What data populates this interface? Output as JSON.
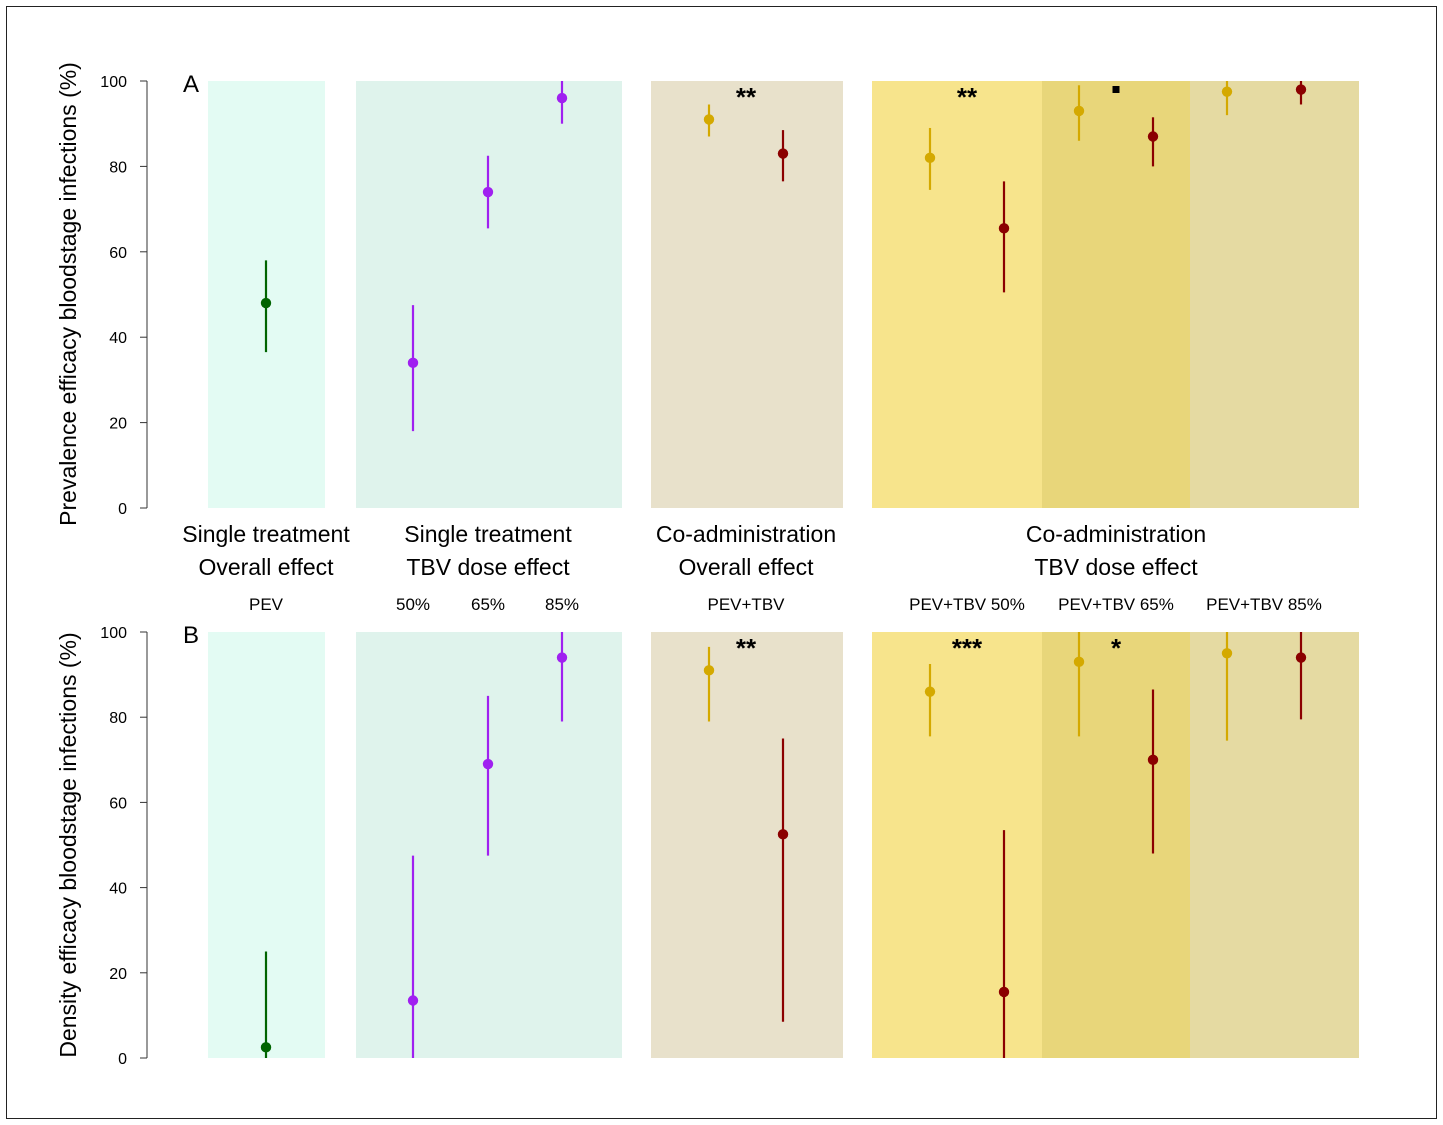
{
  "colors": {
    "pev_single": "#006400",
    "tbv_single": "#a020f0",
    "pev_coadmin": "#d4a900",
    "coadmin": "#8b0000",
    "bg_single_overall": "#e3fbf3",
    "bg_single_dose": "#dff3ec",
    "bg_coadmin_overall": "#e8e1cb",
    "bg_dose_50": "#f7e48c",
    "bg_dose_65": "#e8d67a",
    "bg_dose_85": "#e5daa2"
  },
  "groups": [
    {
      "line1": "Single treatment",
      "line2": "Overall effect"
    },
    {
      "line1": "Single treatment",
      "line2": "TBV dose effect"
    },
    {
      "line1": "Co-administration",
      "line2": "Overall effect"
    },
    {
      "line1": "Co-administration",
      "line2": "TBV dose effect"
    }
  ],
  "sublabels": [
    "PEV",
    "50%",
    "65%",
    "85%",
    "PEV+TBV",
    "PEV+TBV 50%",
    "PEV+TBV 65%",
    "PEV+TBV 85%"
  ],
  "chart_data": [
    {
      "type": "scatter",
      "panel_label": "A",
      "ylabel": "Prevalence efficacy bloodstage infections (%)",
      "ylim": [
        0,
        100
      ],
      "yticks": [
        "0",
        "20",
        "40",
        "60",
        "80",
        "100"
      ],
      "points": [
        {
          "slot": "PEV",
          "role": "pev_single",
          "y": 48,
          "lo": 36.5,
          "hi": 58
        },
        {
          "slot": "50%",
          "role": "tbv_single",
          "y": 34,
          "lo": 18,
          "hi": 47.5
        },
        {
          "slot": "65%",
          "role": "tbv_single",
          "y": 74,
          "lo": 65.5,
          "hi": 82.5
        },
        {
          "slot": "85%",
          "role": "tbv_single",
          "y": 96,
          "lo": 90,
          "hi": 100
        },
        {
          "slot": "PEV+TBV",
          "role": "pev_coadmin",
          "y": 91,
          "lo": 87,
          "hi": 94.5
        },
        {
          "slot": "PEV+TBV",
          "role": "coadmin",
          "y": 83,
          "lo": 76.5,
          "hi": 88.5
        },
        {
          "slot": "PEV+TBV 50%",
          "role": "pev_coadmin",
          "y": 82,
          "lo": 74.5,
          "hi": 89
        },
        {
          "slot": "PEV+TBV 50%",
          "role": "coadmin",
          "y": 65.5,
          "lo": 50.5,
          "hi": 76.5
        },
        {
          "slot": "PEV+TBV 65%",
          "role": "pev_coadmin",
          "y": 93,
          "lo": 86,
          "hi": 99
        },
        {
          "slot": "PEV+TBV 65%",
          "role": "coadmin",
          "y": 87,
          "lo": 80,
          "hi": 91.5
        },
        {
          "slot": "PEV+TBV 85%",
          "role": "pev_coadmin",
          "y": 97.5,
          "lo": 92,
          "hi": 100
        },
        {
          "slot": "PEV+TBV 85%",
          "role": "coadmin",
          "y": 98,
          "lo": 94.5,
          "hi": 100
        }
      ],
      "annotations": [
        {
          "slot": "PEV+TBV",
          "text": "**"
        },
        {
          "slot": "PEV+TBV 50%",
          "text": "**"
        },
        {
          "slot": "PEV+TBV 65%",
          "text": "·"
        }
      ]
    },
    {
      "type": "scatter",
      "panel_label": "B",
      "ylabel": "Density efficacy bloodstage infections (%)",
      "ylim": [
        0,
        100
      ],
      "yticks": [
        "0",
        "20",
        "40",
        "60",
        "80",
        "100"
      ],
      "points": [
        {
          "slot": "PEV",
          "role": "pev_single",
          "y": 2.5,
          "lo": 0,
          "hi": 25
        },
        {
          "slot": "50%",
          "role": "tbv_single",
          "y": 13.5,
          "lo": 0,
          "hi": 47.5
        },
        {
          "slot": "65%",
          "role": "tbv_single",
          "y": 69,
          "lo": 47.5,
          "hi": 85
        },
        {
          "slot": "85%",
          "role": "tbv_single",
          "y": 94,
          "lo": 79,
          "hi": 100
        },
        {
          "slot": "PEV+TBV",
          "role": "pev_coadmin",
          "y": 91,
          "lo": 79,
          "hi": 96.5
        },
        {
          "slot": "PEV+TBV",
          "role": "coadmin",
          "y": 52.5,
          "lo": 8.5,
          "hi": 75
        },
        {
          "slot": "PEV+TBV 50%",
          "role": "pev_coadmin",
          "y": 86,
          "lo": 75.5,
          "hi": 92.5
        },
        {
          "slot": "PEV+TBV 50%",
          "role": "coadmin",
          "y": 15.5,
          "lo": 0,
          "hi": 53.5
        },
        {
          "slot": "PEV+TBV 65%",
          "role": "pev_coadmin",
          "y": 93,
          "lo": 75.5,
          "hi": 100
        },
        {
          "slot": "PEV+TBV 65%",
          "role": "coadmin",
          "y": 70,
          "lo": 48,
          "hi": 86.5
        },
        {
          "slot": "PEV+TBV 85%",
          "role": "pev_coadmin",
          "y": 95,
          "lo": 74.5,
          "hi": 100
        },
        {
          "slot": "PEV+TBV 85%",
          "role": "coadmin",
          "y": 94,
          "lo": 79.5,
          "hi": 100
        }
      ],
      "annotations": [
        {
          "slot": "PEV+TBV",
          "text": "**"
        },
        {
          "slot": "PEV+TBV 50%",
          "text": "***"
        },
        {
          "slot": "PEV+TBV 65%",
          "text": "*"
        }
      ]
    }
  ]
}
